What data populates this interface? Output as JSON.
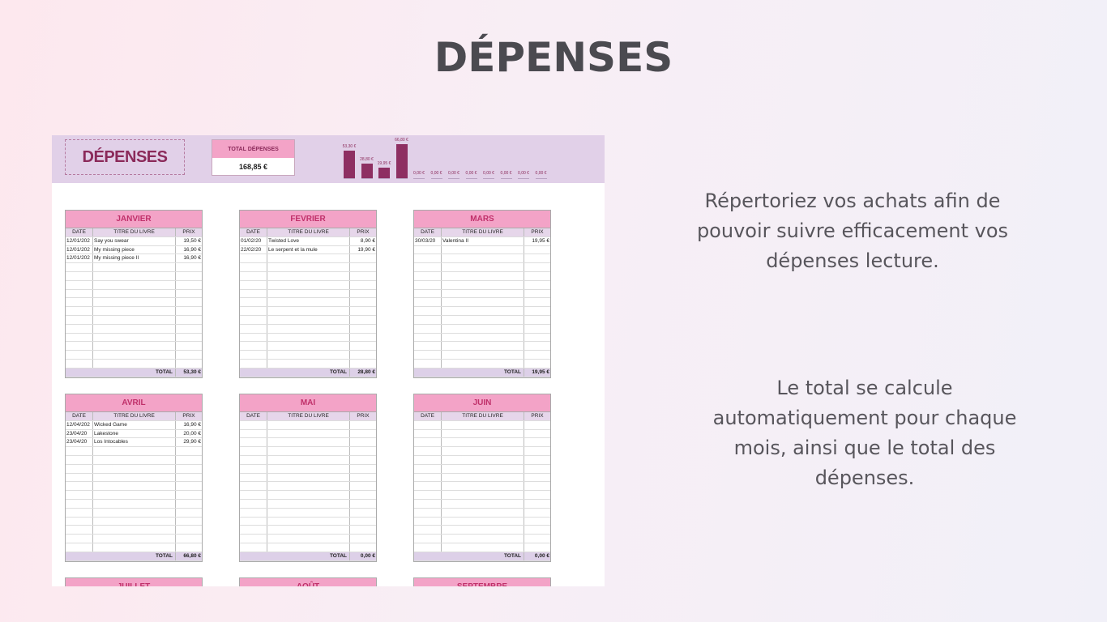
{
  "title": "DÉPENSES",
  "sheet": {
    "title": "DÉPENSES",
    "total_label": "TOTAL DÉPENSES",
    "total_value": "168,85 €",
    "months": [
      {
        "name": "JANVIER",
        "columns": [
          "DATE",
          "TITRE DU LIVRE",
          "PRIX"
        ],
        "rows": [
          [
            "12/01/202",
            "Say you swear",
            "19,50 €"
          ],
          [
            "12/01/202",
            "My missing piece",
            "16,90 €"
          ],
          [
            "12/01/202",
            "My missing piece II",
            "16,90 €"
          ]
        ],
        "total_label": "TOTAL",
        "total": "53,30 €"
      },
      {
        "name": "FEVRIER",
        "columns": [
          "DATE",
          "TITRE DU LIVRE",
          "PRIX"
        ],
        "rows": [
          [
            "01/02/20",
            "Twisted Love",
            "8,90 €"
          ],
          [
            "22/02/20",
            "Le serpent et la mule",
            "19,90 €"
          ]
        ],
        "total_label": "TOTAL",
        "total": "28,80 €"
      },
      {
        "name": "MARS",
        "columns": [
          "DATE",
          "TITRE DU LIVRE",
          "PRIX"
        ],
        "rows": [
          [
            "30/03/20",
            "Valentina II",
            "19,95 €"
          ]
        ],
        "total_label": "TOTAL",
        "total": "19,95 €"
      },
      {
        "name": "AVRIL",
        "columns": [
          "DATE",
          "TITRE DU LIVRE",
          "PRIX"
        ],
        "rows": [
          [
            "12/04/202",
            "Wicked Game",
            "16,90 €"
          ],
          [
            "23/04/20",
            "Lakestone",
            "20,00 €"
          ],
          [
            "23/04/20",
            "Los Intocables",
            "29,90 €"
          ]
        ],
        "total_label": "TOTAL",
        "total": "66,80 €"
      },
      {
        "name": "MAI",
        "columns": [
          "DATE",
          "TITRE DU LIVRE",
          "PRIX"
        ],
        "rows": [],
        "total_label": "TOTAL",
        "total": "0,00 €"
      },
      {
        "name": "JUIN",
        "columns": [
          "DATE",
          "TITRE DU LIVRE",
          "PRIX"
        ],
        "rows": [],
        "total_label": "TOTAL",
        "total": "0,00 €"
      },
      {
        "name": "JUILLET"
      },
      {
        "name": "AOÛT"
      },
      {
        "name": "SEPTEMBRE"
      }
    ]
  },
  "chart_data": {
    "type": "bar",
    "color": "#8e2f62",
    "values": [
      53.3,
      28.8,
      19.95,
      66.8,
      0,
      0,
      0,
      0,
      0,
      0,
      0,
      0
    ],
    "value_labels": [
      "53,30 €",
      "28,80 €",
      "19,95 €",
      "66,80 €",
      "0,00 €",
      "0,00 €",
      "0,00 €",
      "0,00 €",
      "0,00 €",
      "0,00 €",
      "0,00 €",
      "0,00 €"
    ]
  },
  "descriptions": [
    "Répertoriez vos achats afin de pouvoir suivre efficacement vos dépenses lecture.",
    "Le total se calcule automatiquement pour chaque mois, ainsi que le total des dépenses."
  ]
}
